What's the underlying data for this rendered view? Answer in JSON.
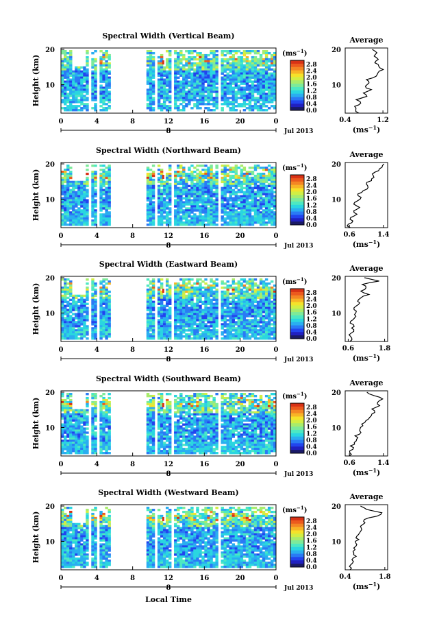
{
  "xlabel": "Local Time",
  "colorbar": {
    "unit_base": "(ms",
    "unit_exp": "−1",
    "unit_close": ")",
    "ticks": [
      "2.8",
      "2.4",
      "2.0",
      "1.6",
      "1.2",
      "0.8",
      "0.4",
      "0.0"
    ],
    "colors": [
      "#1a1a66",
      "#2020c0",
      "#2244ee",
      "#2a7af5",
      "#2aaef0",
      "#2ad6e0",
      "#4de8c2",
      "#7dea9a",
      "#a8ec6c",
      "#d2ee44",
      "#f5e22a",
      "#f8b426",
      "#f48624",
      "#ec5a1e",
      "#d83216"
    ]
  },
  "chart_data": [
    {
      "type": "heatmap",
      "title": "Spectral Width (Vertical Beam)",
      "ylabel": "Height (km)",
      "yticks": [
        "20",
        "10"
      ],
      "xticks": [
        "0",
        "4",
        "8",
        "12",
        "16",
        "20",
        "0"
      ],
      "ylim": [
        1,
        20
      ],
      "xlim": [
        0,
        24
      ],
      "date_ticks": [
        "8"
      ],
      "date": "Jul 2013",
      "average": {
        "title": "Average",
        "xticks": [
          "0.4",
          "1.2"
        ],
        "xlim": [
          0.4,
          1.3
        ],
        "yticks": [
          "20",
          "10"
        ],
        "profile": [
          [
            0.7,
            1
          ],
          [
            0.62,
            2
          ],
          [
            0.58,
            3
          ],
          [
            0.72,
            4
          ],
          [
            0.66,
            5
          ],
          [
            0.85,
            6
          ],
          [
            0.78,
            7
          ],
          [
            0.95,
            8
          ],
          [
            0.82,
            9
          ],
          [
            0.9,
            10
          ],
          [
            0.86,
            11
          ],
          [
            1.05,
            12
          ],
          [
            1.08,
            13
          ],
          [
            1.2,
            14
          ],
          [
            1.12,
            15
          ],
          [
            1.05,
            16
          ],
          [
            1.1,
            17
          ],
          [
            1.0,
            18
          ],
          [
            1.05,
            19
          ],
          [
            0.95,
            20
          ]
        ],
        "xlabel_base": "(ms",
        "xlabel_exp": "−1",
        "xlabel_close": ")"
      }
    },
    {
      "type": "heatmap",
      "title": "Spectral Width (Northward Beam)",
      "ylabel": "Height (km)",
      "yticks": [
        "20",
        "10"
      ],
      "xticks": [
        "0",
        "4",
        "8",
        "12",
        "16",
        "20",
        "0"
      ],
      "ylim": [
        1,
        20
      ],
      "xlim": [
        0,
        24
      ],
      "date_ticks": [
        "8"
      ],
      "date": "Jul 2013",
      "average": {
        "title": "Average",
        "xticks": [
          "0.6",
          "1.4"
        ],
        "xlim": [
          0.5,
          1.5
        ],
        "yticks": [
          "20",
          "10"
        ],
        "profile": [
          [
            0.6,
            1
          ],
          [
            0.58,
            2
          ],
          [
            0.66,
            3
          ],
          [
            0.6,
            4
          ],
          [
            0.75,
            5
          ],
          [
            0.7,
            6
          ],
          [
            0.82,
            7
          ],
          [
            0.72,
            8
          ],
          [
            0.78,
            9
          ],
          [
            0.85,
            10
          ],
          [
            0.8,
            11
          ],
          [
            0.95,
            12
          ],
          [
            1.05,
            13
          ],
          [
            0.98,
            14
          ],
          [
            1.1,
            15
          ],
          [
            1.2,
            16
          ],
          [
            1.15,
            17
          ],
          [
            1.3,
            18
          ],
          [
            1.35,
            19
          ],
          [
            1.4,
            20
          ]
        ],
        "xlabel_base": "(ms",
        "xlabel_exp": "−1",
        "xlabel_close": ")"
      }
    },
    {
      "type": "heatmap",
      "title": "Spectral Width (Eastward Beam)",
      "ylabel": "Height (km)",
      "yticks": [
        "20",
        "10"
      ],
      "xticks": [
        "0",
        "4",
        "8",
        "12",
        "16",
        "20",
        "0"
      ],
      "ylim": [
        1,
        20
      ],
      "xlim": [
        0,
        24
      ],
      "date_ticks": [
        "8"
      ],
      "date": "Jul 2013",
      "average": {
        "title": "Average",
        "xticks": [
          "0.6",
          "1.8"
        ],
        "xlim": [
          0.5,
          1.9
        ],
        "yticks": [
          "20",
          "10"
        ],
        "profile": [
          [
            0.62,
            1
          ],
          [
            0.7,
            2
          ],
          [
            0.66,
            3
          ],
          [
            0.8,
            4
          ],
          [
            0.72,
            5
          ],
          [
            0.75,
            6
          ],
          [
            0.7,
            7
          ],
          [
            0.82,
            8
          ],
          [
            0.78,
            9
          ],
          [
            0.86,
            10
          ],
          [
            0.8,
            11
          ],
          [
            0.9,
            12
          ],
          [
            0.95,
            13
          ],
          [
            1.0,
            14
          ],
          [
            1.3,
            15
          ],
          [
            1.05,
            16
          ],
          [
            1.2,
            17
          ],
          [
            1.1,
            18
          ],
          [
            1.6,
            19
          ],
          [
            1.1,
            20
          ]
        ],
        "xlabel_base": "(ms",
        "xlabel_exp": "−1",
        "xlabel_close": ")"
      }
    },
    {
      "type": "heatmap",
      "title": "Spectral Width (Southward Beam)",
      "ylabel": "Height (km)",
      "yticks": [
        "20",
        "10"
      ],
      "xticks": [
        "0",
        "4",
        "8",
        "12",
        "16",
        "20",
        "0"
      ],
      "ylim": [
        1,
        20
      ],
      "xlim": [
        0,
        24
      ],
      "date_ticks": [
        "8"
      ],
      "date": "Jul 2013",
      "average": {
        "title": "Average",
        "xticks": [
          "0.6",
          "1.4"
        ],
        "xlim": [
          0.5,
          1.5
        ],
        "yticks": [
          "20",
          "10"
        ],
        "profile": [
          [
            0.62,
            1
          ],
          [
            0.6,
            2
          ],
          [
            0.7,
            3
          ],
          [
            0.62,
            4
          ],
          [
            0.72,
            5
          ],
          [
            0.8,
            6
          ],
          [
            0.76,
            7
          ],
          [
            0.85,
            8
          ],
          [
            0.82,
            9
          ],
          [
            0.9,
            10
          ],
          [
            0.95,
            11
          ],
          [
            1.05,
            12
          ],
          [
            1.1,
            13
          ],
          [
            1.2,
            14
          ],
          [
            1.15,
            15
          ],
          [
            1.3,
            16
          ],
          [
            1.25,
            17
          ],
          [
            1.38,
            18
          ],
          [
            1.2,
            19
          ],
          [
            1.0,
            20
          ]
        ],
        "xlabel_base": "(ms",
        "xlabel_exp": "−1",
        "xlabel_close": ")"
      }
    },
    {
      "type": "heatmap",
      "title": "Spectral Width (Westward Beam)",
      "ylabel": "Height (km)",
      "yticks": [
        "20",
        "10"
      ],
      "xticks": [
        "0",
        "4",
        "8",
        "12",
        "16",
        "20",
        "0"
      ],
      "ylim": [
        1,
        20
      ],
      "xlim": [
        0,
        24
      ],
      "date_ticks": [
        "8"
      ],
      "date": "Jul 2013",
      "average": {
        "title": "Average",
        "xticks": [
          "0.4",
          "1.8"
        ],
        "xlim": [
          0.4,
          1.9
        ],
        "yticks": [
          "20",
          "10"
        ],
        "profile": [
          [
            0.6,
            1
          ],
          [
            0.55,
            2
          ],
          [
            0.7,
            3
          ],
          [
            0.62,
            4
          ],
          [
            0.8,
            5
          ],
          [
            0.7,
            6
          ],
          [
            0.78,
            7
          ],
          [
            0.74,
            8
          ],
          [
            0.8,
            9
          ],
          [
            0.85,
            10
          ],
          [
            0.82,
            11
          ],
          [
            0.92,
            12
          ],
          [
            1.0,
            13
          ],
          [
            0.95,
            14
          ],
          [
            1.1,
            15
          ],
          [
            1.05,
            16
          ],
          [
            1.5,
            17
          ],
          [
            1.7,
            18
          ],
          [
            1.2,
            19
          ],
          [
            0.9,
            20
          ]
        ],
        "xlabel_base": "(ms",
        "xlabel_exp": "−1",
        "xlabel_close": ")"
      }
    }
  ]
}
